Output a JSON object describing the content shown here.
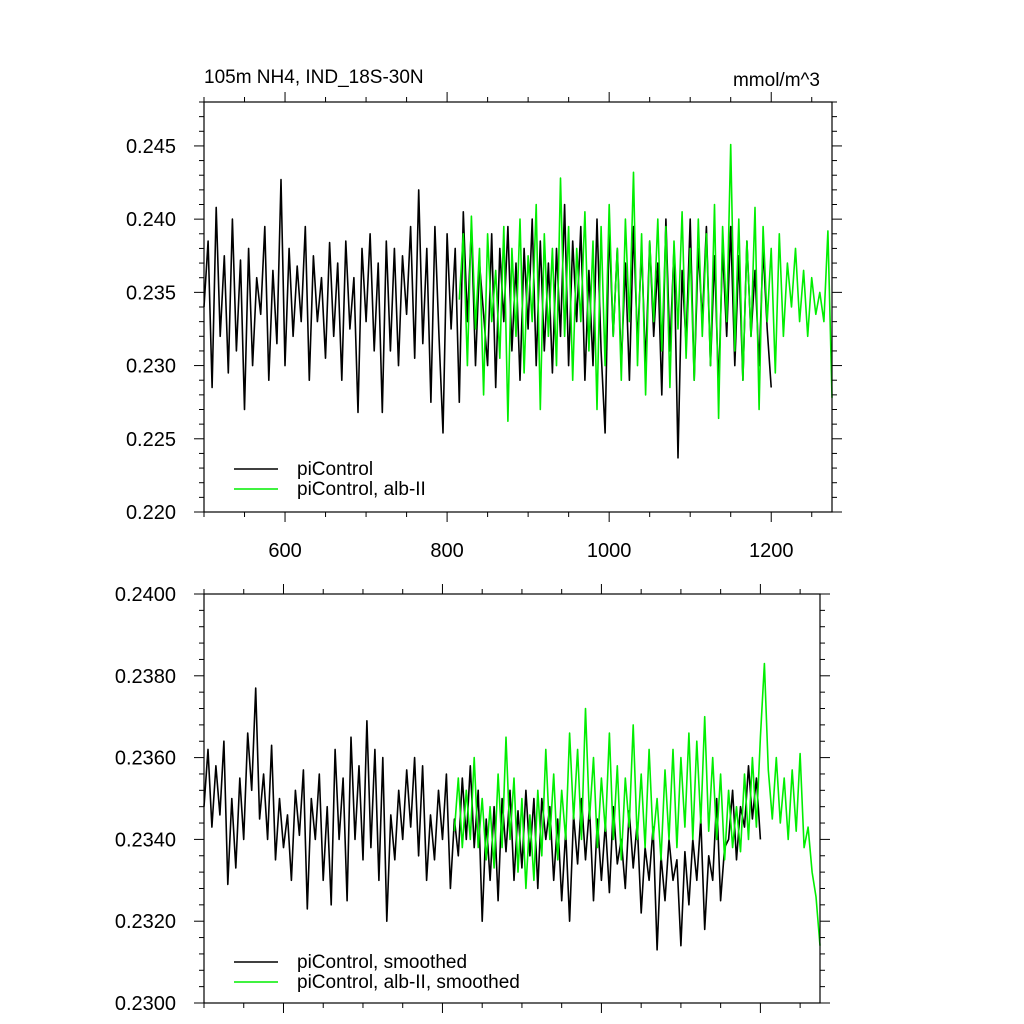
{
  "chart_data": [
    {
      "type": "line",
      "title_left": "105m NH4, IND_18S-30N",
      "title_right": "mmol/m^3",
      "xlabel": "",
      "ylabel": "",
      "xlim": [
        500,
        1275
      ],
      "ylim": [
        0.22,
        0.248
      ],
      "x_ticks": [
        600,
        800,
        1000,
        1200
      ],
      "x_tick_labels": [
        "600",
        "800",
        "1000",
        "1200"
      ],
      "y_ticks": [
        0.22,
        0.225,
        0.23,
        0.235,
        0.24,
        0.245
      ],
      "y_tick_labels": [
        "0.220",
        "0.225",
        "0.230",
        "0.235",
        "0.240",
        "0.245"
      ],
      "grid": false,
      "legend_position": "bottom-left",
      "series": [
        {
          "name": "piControl",
          "color": "#000000",
          "x": [
            500,
            505,
            510,
            515,
            520,
            525,
            530,
            535,
            540,
            545,
            550,
            555,
            560,
            565,
            570,
            575,
            580,
            585,
            590,
            595,
            600,
            605,
            610,
            615,
            620,
            625,
            630,
            635,
            640,
            645,
            650,
            655,
            660,
            665,
            670,
            675,
            680,
            685,
            690,
            695,
            700,
            705,
            710,
            715,
            720,
            725,
            730,
            735,
            740,
            745,
            750,
            755,
            760,
            765,
            770,
            775,
            780,
            785,
            790,
            795,
            800,
            805,
            810,
            815,
            820,
            825,
            830,
            835,
            840,
            845,
            850,
            855,
            860,
            865,
            870,
            875,
            880,
            885,
            890,
            895,
            900,
            905,
            910,
            915,
            920,
            925,
            930,
            935,
            940,
            945,
            950,
            955,
            960,
            965,
            970,
            975,
            980,
            985,
            990,
            995,
            1000,
            1005,
            1010,
            1015,
            1020,
            1025,
            1030,
            1035,
            1040,
            1045,
            1050,
            1055,
            1060,
            1065,
            1070,
            1075,
            1080,
            1085,
            1090,
            1095,
            1100,
            1105,
            1110,
            1115,
            1120,
            1125,
            1130,
            1135,
            1140,
            1145,
            1150,
            1155,
            1160,
            1165,
            1170,
            1175,
            1180,
            1185,
            1190,
            1195,
            1200
          ],
          "y": [
            0.234,
            0.2385,
            0.2285,
            0.2408,
            0.232,
            0.2375,
            0.2295,
            0.24,
            0.231,
            0.2372,
            0.227,
            0.238,
            0.23,
            0.236,
            0.2335,
            0.2395,
            0.229,
            0.2365,
            0.2315,
            0.2427,
            0.23,
            0.238,
            0.232,
            0.2368,
            0.233,
            0.2395,
            0.229,
            0.2375,
            0.233,
            0.236,
            0.2305,
            0.2384,
            0.232,
            0.237,
            0.229,
            0.2385,
            0.2325,
            0.236,
            0.2268,
            0.238,
            0.233,
            0.239,
            0.231,
            0.237,
            0.2268,
            0.2385,
            0.231,
            0.238,
            0.23,
            0.2375,
            0.2335,
            0.2395,
            0.2305,
            0.242,
            0.2315,
            0.238,
            0.2275,
            0.2395,
            0.232,
            0.2254,
            0.239,
            0.2325,
            0.238,
            0.2275,
            0.2405,
            0.233,
            0.2395,
            0.23,
            0.237,
            0.2335,
            0.23,
            0.239,
            0.2285,
            0.238,
            0.233,
            0.2395,
            0.231,
            0.237,
            0.229,
            0.238,
            0.2325,
            0.24,
            0.23,
            0.2385,
            0.231,
            0.237,
            0.2295,
            0.238,
            0.232,
            0.241,
            0.23,
            0.2385,
            0.233,
            0.2395,
            0.229,
            0.2365,
            0.23,
            0.24,
            0.231,
            0.2254,
            0.2395,
            0.232,
            0.238,
            0.23,
            0.237,
            0.229,
            0.2395,
            0.2315,
            0.238,
            0.23,
            0.2385,
            0.232,
            0.237,
            0.228,
            0.24,
            0.231,
            0.238,
            0.2237,
            0.2365,
            0.2315,
            0.24,
            0.229,
            0.238,
            0.233,
            0.2395,
            0.23,
            0.2375,
            0.2285,
            0.238,
            0.232,
            0.2395,
            0.23,
            0.2375,
            0.229,
            0.2385,
            0.232,
            0.2365,
            0.23,
            0.238,
            0.2325,
            0.2285
          ]
        },
        {
          "name": "piControl, alb-II",
          "color": "#00ee00",
          "x": [
            815,
            820,
            825,
            830,
            835,
            840,
            845,
            850,
            855,
            860,
            865,
            870,
            875,
            880,
            885,
            890,
            895,
            900,
            905,
            910,
            915,
            920,
            925,
            930,
            935,
            940,
            945,
            950,
            955,
            960,
            965,
            970,
            975,
            980,
            985,
            990,
            995,
            1000,
            1005,
            1010,
            1015,
            1020,
            1025,
            1030,
            1035,
            1040,
            1045,
            1050,
            1055,
            1060,
            1065,
            1070,
            1075,
            1080,
            1085,
            1090,
            1095,
            1100,
            1105,
            1110,
            1115,
            1120,
            1125,
            1130,
            1135,
            1140,
            1145,
            1150,
            1155,
            1160,
            1165,
            1170,
            1175,
            1180,
            1185,
            1190,
            1195,
            1200,
            1205,
            1210,
            1215,
            1220,
            1225,
            1230,
            1235,
            1240,
            1245,
            1250,
            1255,
            1260,
            1265,
            1270,
            1275
          ],
          "y": [
            0.2345,
            0.239,
            0.23,
            0.2402,
            0.2325,
            0.238,
            0.228,
            0.239,
            0.233,
            0.2365,
            0.2305,
            0.2395,
            0.2262,
            0.238,
            0.232,
            0.24,
            0.2295,
            0.2375,
            0.233,
            0.241,
            0.227,
            0.239,
            0.232,
            0.238,
            0.23,
            0.2428,
            0.232,
            0.2395,
            0.229,
            0.238,
            0.233,
            0.2405,
            0.231,
            0.2385,
            0.227,
            0.2395,
            0.23,
            0.241,
            0.232,
            0.238,
            0.229,
            0.24,
            0.233,
            0.2432,
            0.23,
            0.239,
            0.228,
            0.2385,
            0.233,
            0.24,
            0.231,
            0.2395,
            0.2285,
            0.2385,
            0.2325,
            0.2405,
            0.2305,
            0.238,
            0.229,
            0.24,
            0.232,
            0.239,
            0.23,
            0.241,
            0.2264,
            0.2395,
            0.233,
            0.2451,
            0.231,
            0.24,
            0.229,
            0.2385,
            0.232,
            0.2408,
            0.227,
            0.2395,
            0.233,
            0.238,
            0.2295,
            0.239,
            0.232,
            0.237,
            0.234,
            0.238,
            0.233,
            0.2365,
            0.232,
            0.236,
            0.2335,
            0.235,
            0.233,
            0.2392,
            0.2278
          ]
        }
      ]
    },
    {
      "type": "line",
      "title": "",
      "xlabel": "",
      "ylabel": "",
      "xlim": [
        500,
        1275
      ],
      "ylim": [
        0.23,
        0.24
      ],
      "x_ticks": [
        600,
        800,
        1000,
        1200
      ],
      "y_ticks": [
        0.23,
        0.232,
        0.234,
        0.236,
        0.238,
        0.24
      ],
      "y_tick_labels": [
        "0.2300",
        "0.2320",
        "0.2340",
        "0.2360",
        "0.2380",
        "0.2400"
      ],
      "grid": false,
      "legend_position": "bottom-left",
      "series": [
        {
          "name": "piControl, smoothed",
          "color": "#000000",
          "x": [
            500,
            505,
            510,
            515,
            520,
            525,
            530,
            535,
            540,
            545,
            550,
            555,
            560,
            565,
            570,
            575,
            580,
            585,
            590,
            595,
            600,
            605,
            610,
            615,
            620,
            625,
            630,
            635,
            640,
            645,
            650,
            655,
            660,
            665,
            670,
            675,
            680,
            685,
            690,
            695,
            700,
            705,
            710,
            715,
            720,
            725,
            730,
            735,
            740,
            745,
            750,
            755,
            760,
            765,
            770,
            775,
            780,
            785,
            790,
            795,
            800,
            805,
            810,
            815,
            820,
            825,
            830,
            835,
            840,
            845,
            850,
            855,
            860,
            865,
            870,
            875,
            880,
            885,
            890,
            895,
            900,
            905,
            910,
            915,
            920,
            925,
            930,
            935,
            940,
            945,
            950,
            955,
            960,
            965,
            970,
            975,
            980,
            985,
            990,
            995,
            1000,
            1005,
            1010,
            1015,
            1020,
            1025,
            1030,
            1035,
            1040,
            1045,
            1050,
            1055,
            1060,
            1065,
            1070,
            1075,
            1080,
            1085,
            1090,
            1095,
            1100,
            1105,
            1110,
            1115,
            1120,
            1125,
            1130,
            1135,
            1140,
            1145,
            1150,
            1155,
            1160,
            1165,
            1170,
            1175,
            1180,
            1185,
            1190,
            1195,
            1200
          ],
          "y": [
            0.2348,
            0.2362,
            0.2343,
            0.2358,
            0.2346,
            0.2364,
            0.2329,
            0.235,
            0.2333,
            0.2355,
            0.234,
            0.2366,
            0.2352,
            0.2377,
            0.2345,
            0.2356,
            0.234,
            0.2363,
            0.2335,
            0.235,
            0.2338,
            0.2346,
            0.233,
            0.2352,
            0.2341,
            0.2357,
            0.2323,
            0.235,
            0.234,
            0.2356,
            0.233,
            0.2348,
            0.2324,
            0.2362,
            0.234,
            0.2355,
            0.2325,
            0.2365,
            0.234,
            0.2358,
            0.2335,
            0.2369,
            0.2338,
            0.2362,
            0.233,
            0.236,
            0.232,
            0.2346,
            0.2335,
            0.2352,
            0.234,
            0.2357,
            0.2343,
            0.236,
            0.2336,
            0.2358,
            0.233,
            0.2346,
            0.2335,
            0.2352,
            0.234,
            0.2356,
            0.2328,
            0.2345,
            0.2336,
            0.2355,
            0.234,
            0.2358,
            0.2338,
            0.2352,
            0.232,
            0.2345,
            0.233,
            0.2348,
            0.2325,
            0.235,
            0.2337,
            0.2352,
            0.233,
            0.2347,
            0.2333,
            0.2352,
            0.2336,
            0.235,
            0.2328,
            0.235,
            0.234,
            0.2348,
            0.233,
            0.2345,
            0.2325,
            0.2342,
            0.232,
            0.2346,
            0.2334,
            0.235,
            0.2335,
            0.2348,
            0.2325,
            0.2345,
            0.233,
            0.2344,
            0.2327,
            0.2348,
            0.2334,
            0.234,
            0.2328,
            0.2347,
            0.2333,
            0.2344,
            0.2322,
            0.2338,
            0.233,
            0.2343,
            0.2313,
            0.2336,
            0.2325,
            0.234,
            0.233,
            0.2335,
            0.2314,
            0.2337,
            0.2324,
            0.234,
            0.233,
            0.2345,
            0.2318,
            0.2336,
            0.233,
            0.235,
            0.2325,
            0.2338,
            0.234,
            0.2352,
            0.2335,
            0.2348,
            0.2343,
            0.2358,
            0.2345,
            0.2355,
            0.234
          ]
        },
        {
          "name": "piControl, alb-II, smoothed",
          "color": "#00ee00",
          "x": [
            815,
            820,
            825,
            830,
            835,
            840,
            845,
            850,
            855,
            860,
            865,
            870,
            875,
            880,
            885,
            890,
            895,
            900,
            905,
            910,
            915,
            920,
            925,
            930,
            935,
            940,
            945,
            950,
            955,
            960,
            965,
            970,
            975,
            980,
            985,
            990,
            995,
            1000,
            1005,
            1010,
            1015,
            1020,
            1025,
            1030,
            1035,
            1040,
            1045,
            1050,
            1055,
            1060,
            1065,
            1070,
            1075,
            1080,
            1085,
            1090,
            1095,
            1100,
            1105,
            1110,
            1115,
            1120,
            1125,
            1130,
            1135,
            1140,
            1145,
            1150,
            1155,
            1160,
            1165,
            1170,
            1175,
            1180,
            1185,
            1190,
            1195,
            1200,
            1205,
            1210,
            1215,
            1220,
            1225,
            1230,
            1235,
            1240,
            1245,
            1250,
            1255,
            1260,
            1265,
            1270,
            1275
          ],
          "y": [
            0.2342,
            0.2355,
            0.2338,
            0.2352,
            0.234,
            0.236,
            0.2338,
            0.235,
            0.2335,
            0.2348,
            0.2333,
            0.2356,
            0.2338,
            0.2365,
            0.234,
            0.2355,
            0.2332,
            0.235,
            0.2328,
            0.2346,
            0.233,
            0.2352,
            0.2336,
            0.2362,
            0.234,
            0.2356,
            0.2335,
            0.2352,
            0.234,
            0.2366,
            0.2345,
            0.2362,
            0.234,
            0.2372,
            0.2345,
            0.236,
            0.2338,
            0.2355,
            0.2342,
            0.2366,
            0.234,
            0.2358,
            0.2335,
            0.2355,
            0.2343,
            0.2368,
            0.234,
            0.2356,
            0.2338,
            0.2362,
            0.234,
            0.235,
            0.2335,
            0.2357,
            0.234,
            0.2362,
            0.2338,
            0.236,
            0.2343,
            0.2366,
            0.234,
            0.2364,
            0.2344,
            0.237,
            0.2342,
            0.236,
            0.234,
            0.2356,
            0.2335,
            0.2352,
            0.2338,
            0.2348,
            0.2337,
            0.2356,
            0.234,
            0.236,
            0.2343,
            0.2365,
            0.2383,
            0.2357,
            0.2345,
            0.236,
            0.2344,
            0.2355,
            0.234,
            0.2357,
            0.2342,
            0.2361,
            0.2338,
            0.2343,
            0.2332,
            0.2326,
            0.2314
          ]
        }
      ]
    }
  ]
}
